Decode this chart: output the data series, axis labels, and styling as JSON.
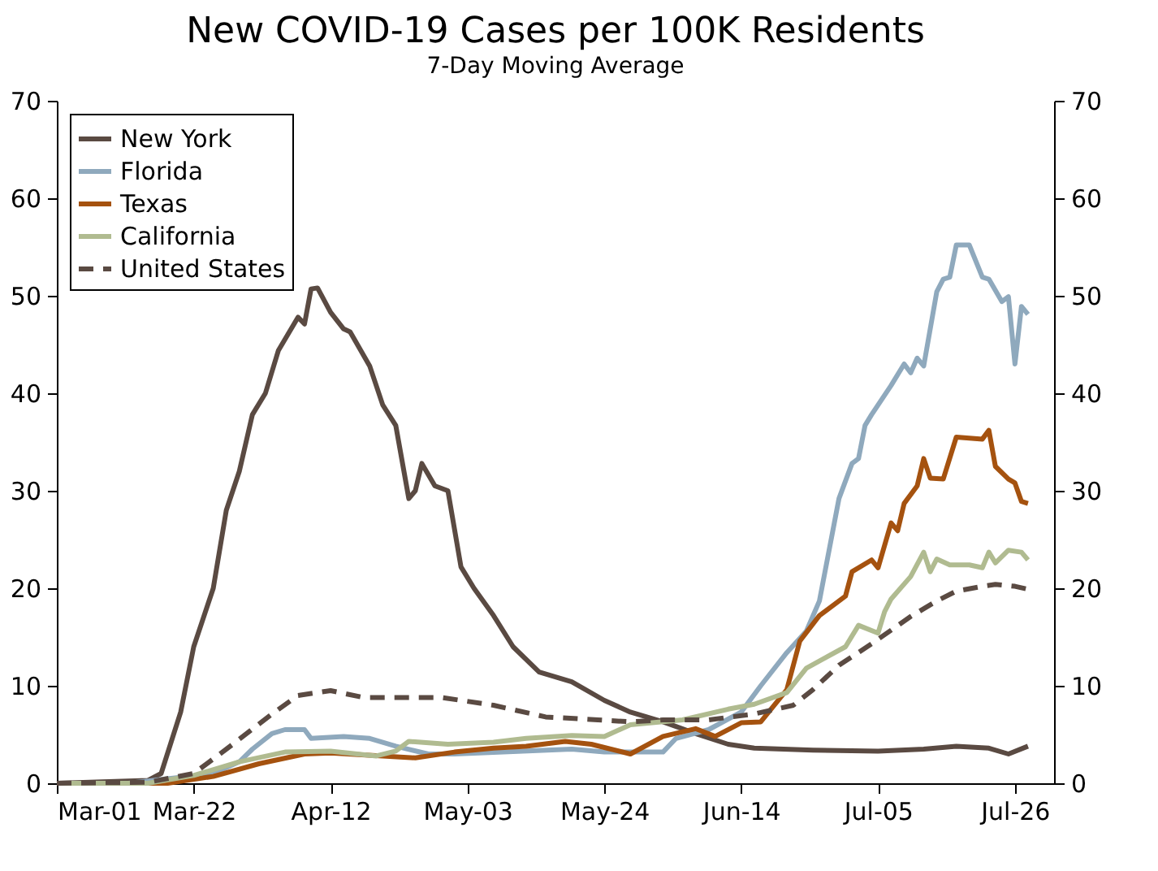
{
  "chart_data": {
    "type": "line",
    "title": "New COVID-19 Cases per 100K Residents",
    "subtitle": "7-Day Moving Average",
    "xlim": [
      "--03-01",
      "--08-01"
    ],
    "xticks": [
      {
        "value": "--03-01",
        "label": "Mar-01"
      },
      {
        "value": "--03-22",
        "label": "Mar-22"
      },
      {
        "value": "--04-12",
        "label": "Apr-12"
      },
      {
        "value": "--05-03",
        "label": "May-03"
      },
      {
        "value": "--05-24",
        "label": "May-24"
      },
      {
        "value": "--06-14",
        "label": "Jun-14"
      },
      {
        "value": "--07-05",
        "label": "Jul-05"
      },
      {
        "value": "--07-26",
        "label": "Jul-26"
      }
    ],
    "ylim": [
      0,
      70
    ],
    "yticks": [
      0,
      10,
      20,
      30,
      40,
      50,
      60,
      70
    ],
    "y2lim": [
      0,
      70
    ],
    "y2ticks": [
      0,
      10,
      20,
      30,
      40,
      50,
      60,
      70
    ],
    "legend": "top left",
    "series": [
      {
        "name": "New York",
        "color": "#5a4a42",
        "line_style": "solid",
        "x": [
          "--03-01",
          "--03-15",
          "--03-17",
          "--03-20",
          "--03-22",
          "--03-25",
          "--03-27",
          "--03-29",
          "--03-31",
          "--04-02",
          "--04-04",
          "--04-07",
          "--04-08",
          "--04-09",
          "--04-10",
          "--04-12",
          "--04-14",
          "--04-15",
          "--04-18",
          "--04-20",
          "--04-22",
          "--04-24",
          "--04-25",
          "--04-26",
          "--04-28",
          "--04-30",
          "--05-02",
          "--05-04",
          "--05-07",
          "--05-10",
          "--05-14",
          "--05-19",
          "--05-24",
          "--05-28",
          "--06-02",
          "--06-07",
          "--06-12",
          "--06-16",
          "--06-25",
          "--07-05",
          "--07-12",
          "--07-17",
          "--07-22",
          "--07-25",
          "--07-28"
        ],
        "values": [
          0,
          0.3,
          1,
          7.3,
          14,
          20,
          28,
          32,
          37.8,
          40,
          44.4,
          47.8,
          47.1,
          50.7,
          50.8,
          48.3,
          46.6,
          46.3,
          42.8,
          38.8,
          36.7,
          29.2,
          30,
          32.8,
          30.5,
          30,
          22.2,
          20,
          17.2,
          14,
          11.4,
          10.4,
          8.5,
          7.3,
          6.3,
          5.1,
          4,
          3.6,
          3.4,
          3.3,
          3.5,
          3.8,
          3.6,
          3,
          3.8
        ]
      },
      {
        "name": "Florida",
        "color": "#8fa9bd",
        "line_style": "solid",
        "x": [
          "--03-01",
          "--03-12",
          "--03-25",
          "--03-29",
          "--03-31",
          "--04-03",
          "--04-05",
          "--04-08",
          "--04-09",
          "--04-14",
          "--04-18",
          "--04-22",
          "--04-27",
          "--05-01",
          "--05-19",
          "--05-24",
          "--06-02",
          "--06-04",
          "--06-09",
          "--06-14",
          "--06-17",
          "--06-21",
          "--06-24",
          "--06-26",
          "--06-29",
          "--07-01",
          "--07-02",
          "--07-03",
          "--07-04",
          "--07-07",
          "--07-09",
          "--07-10",
          "--07-11",
          "--07-12",
          "--07-14",
          "--07-15",
          "--07-16",
          "--07-17",
          "--07-19",
          "--07-21",
          "--07-22",
          "--07-24",
          "--07-25",
          "--07-26",
          "--07-27",
          "--07-28"
        ],
        "values": [
          0,
          0,
          1,
          2.2,
          3.5,
          5.1,
          5.5,
          5.5,
          4.6,
          4.8,
          4.6,
          3.8,
          3,
          3,
          3.5,
          3.2,
          3.2,
          4.6,
          5.5,
          7.3,
          10,
          13.4,
          15.6,
          18.7,
          29.2,
          32.8,
          33.3,
          36.7,
          37.8,
          40.8,
          43,
          42.1,
          43.6,
          42.8,
          50.4,
          51.7,
          51.9,
          55.2,
          55.2,
          51.9,
          51.7,
          49.4,
          49.9,
          43,
          48.9,
          48.1
        ]
      },
      {
        "name": "Texas",
        "color": "#a5520f",
        "line_style": "solid",
        "x": [
          "--03-01",
          "--03-18",
          "--03-25",
          "--04-01",
          "--04-08",
          "--04-12",
          "--04-20",
          "--04-25",
          "--05-01",
          "--05-07",
          "--05-12",
          "--05-18",
          "--05-22",
          "--05-28",
          "--06-02",
          "--06-07",
          "--06-10",
          "--06-14",
          "--06-17",
          "--06-21",
          "--06-23",
          "--06-26",
          "--06-30",
          "--07-01",
          "--07-04",
          "--07-05",
          "--07-07",
          "--07-08",
          "--07-09",
          "--07-11",
          "--07-12",
          "--07-13",
          "--07-15",
          "--07-17",
          "--07-21",
          "--07-22",
          "--07-23",
          "--07-25",
          "--07-26",
          "--07-27",
          "--07-28"
        ],
        "values": [
          0,
          0,
          0.7,
          2,
          3,
          3.1,
          2.8,
          2.6,
          3.2,
          3.6,
          3.8,
          4.3,
          4,
          3,
          4.8,
          5.6,
          4.8,
          6.2,
          6.3,
          9.6,
          14.6,
          17.2,
          19.2,
          21.7,
          22.9,
          22.1,
          26.7,
          25.9,
          28.7,
          30.5,
          33.3,
          31.3,
          31.2,
          35.5,
          35.3,
          36.2,
          32.5,
          31.2,
          30.8,
          28.9,
          28.7
        ]
      },
      {
        "name": "California",
        "color": "#b0bb90",
        "line_style": "solid",
        "x": [
          "--03-01",
          "--03-15",
          "--03-22",
          "--03-29",
          "--04-05",
          "--04-12",
          "--04-19",
          "--04-22",
          "--04-24",
          "--04-30",
          "--05-07",
          "--05-12",
          "--05-19",
          "--05-24",
          "--05-28",
          "--06-05",
          "--06-12",
          "--06-16",
          "--06-21",
          "--06-24",
          "--06-27",
          "--06-30",
          "--07-02",
          "--07-05",
          "--07-06",
          "--07-07",
          "--07-10",
          "--07-12",
          "--07-13",
          "--07-14",
          "--07-16",
          "--07-19",
          "--07-21",
          "--07-22",
          "--07-23",
          "--07-25",
          "--07-27",
          "--07-28"
        ],
        "values": [
          0,
          0,
          0.8,
          2.2,
          3.2,
          3.3,
          2.8,
          3.3,
          4.3,
          4,
          4.2,
          4.6,
          4.9,
          4.8,
          6,
          6.5,
          7.6,
          8.1,
          9.3,
          11.8,
          12.9,
          14,
          16.2,
          15.4,
          17.6,
          18.9,
          21.2,
          23.7,
          21.7,
          23,
          22.4,
          22.4,
          22.1,
          23.7,
          22.6,
          23.9,
          23.7,
          22.9
        ]
      },
      {
        "name": "United States",
        "color": "#5a4a42",
        "line_style": "dashed",
        "x": [
          "--03-01",
          "--03-15",
          "--03-22",
          "--03-28",
          "--04-03",
          "--04-07",
          "--04-12",
          "--04-17",
          "--04-24",
          "--04-29",
          "--05-07",
          "--05-15",
          "--05-23",
          "--05-28",
          "--06-02",
          "--06-09",
          "--06-16",
          "--06-22",
          "--06-25",
          "--06-29",
          "--07-04",
          "--07-10",
          "--07-14",
          "--07-17",
          "--07-21",
          "--07-23",
          "--07-26",
          "--07-28"
        ],
        "values": [
          0,
          0.1,
          1,
          4,
          7.1,
          9,
          9.5,
          8.8,
          8.8,
          8.8,
          8,
          6.8,
          6.5,
          6.3,
          6.5,
          6.5,
          7.1,
          8,
          9.6,
          12.1,
          14.3,
          17.1,
          18.7,
          19.7,
          20.2,
          20.4,
          20.2,
          19.9
        ]
      }
    ]
  }
}
